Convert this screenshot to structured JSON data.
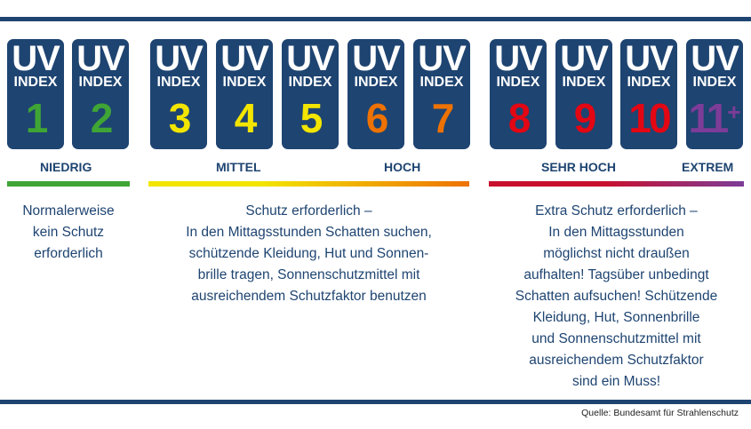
{
  "tiles": [
    {
      "uv": "UV",
      "index": "INDEX",
      "value": "1",
      "color": "#3fa535"
    },
    {
      "uv": "UV",
      "index": "INDEX",
      "value": "2",
      "color": "#3fa535"
    },
    {
      "uv": "UV",
      "index": "INDEX",
      "value": "3",
      "color": "#f2e500"
    },
    {
      "uv": "UV",
      "index": "INDEX",
      "value": "4",
      "color": "#f2e500"
    },
    {
      "uv": "UV",
      "index": "INDEX",
      "value": "5",
      "color": "#f2e500"
    },
    {
      "uv": "UV",
      "index": "INDEX",
      "value": "6",
      "color": "#ee7203"
    },
    {
      "uv": "UV",
      "index": "INDEX",
      "value": "7",
      "color": "#ee7203"
    },
    {
      "uv": "UV",
      "index": "INDEX",
      "value": "8",
      "color": "#e30613"
    },
    {
      "uv": "UV",
      "index": "INDEX",
      "value": "9",
      "color": "#e30613"
    },
    {
      "uv": "UV",
      "index": "INDEX",
      "value": "10",
      "color": "#e30613"
    },
    {
      "uv": "UV",
      "index": "INDEX",
      "value": "11",
      "plus": "+",
      "color": "#7d3c98"
    }
  ],
  "levels": {
    "low": "NIEDRIG",
    "moderate": "MITTEL",
    "high": "HOCH",
    "very_high": "SEHR HOCH",
    "extreme": "EXTREM"
  },
  "bar_colors": {
    "green": "#3fa535",
    "yellow": "#f2e500",
    "orange": "#ee7203",
    "red": "#c8102e",
    "purple": "#7d3c98"
  },
  "descriptions": {
    "low": "Normalerweise\nkein Schutz\nerforderlich",
    "moderate_high": "Schutz erforderlich –\nIn den Mittagsstunden Schatten suchen,\nschützende Kleidung, Hut und Sonnen-\nbrille tragen, Sonnenschutzmittel mit\nausreichendem Schutzfaktor benutzen",
    "very_high_extreme": "Extra Schutz erforderlich –\nIn den Mittagsstunden\nmöglichst nicht draußen\naufhalten! Tagsüber unbedingt\nSchatten aufsuchen! Schützende\nKleidung, Hut, Sonnenbrille\nund Sonnenschutzmittel mit\nausreichendem Schutzfaktor\nsind ein Muss!"
  },
  "source": "Quelle: Bundesamt für Strahlenschutz"
}
